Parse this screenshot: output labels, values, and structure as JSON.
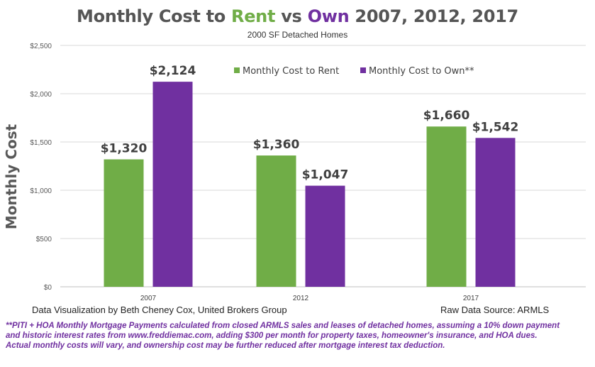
{
  "title": {
    "part1": "Monthly Cost to ",
    "rent": "Rent",
    "part2": " vs ",
    "own": "Own",
    "part3": " 2007, 2012, 2017"
  },
  "subtitle": "2000  SF Detached Homes",
  "credit_left": "Data Visualization by Beth Cheney Cox, United Brokers Group",
  "credit_right": "Raw Data Source:  ARMLS",
  "footnote": [
    "**PITI + HOA Monthly Mortgage Payments calculated from closed ARMLS sales and leases of detached homes, assuming a 10% down payment",
    "and historic interest rates from www.freddiemac.com, adding $300 per month for  property taxes, homeowner's insurance, and HOA dues.",
    "Actual monthly costs will vary, and ownership cost may be further reduced after mortgage interest tax deduction."
  ],
  "colors": {
    "rent": "#70ad47",
    "own": "#7030a0",
    "title_gray": "#555555",
    "grid": "#d9d9d9"
  },
  "chart_data": {
    "type": "bar",
    "categories": [
      "2007",
      "2012",
      "2017"
    ],
    "series": [
      {
        "name": "Monthly Cost to Rent",
        "values": [
          1320,
          1360,
          1660
        ],
        "labels": [
          "$1,320",
          "$1,360",
          "$1,660"
        ],
        "color": "#70ad47"
      },
      {
        "name": "Monthly Cost to Own**",
        "values": [
          2124,
          1047,
          1542
        ],
        "labels": [
          "$2,124",
          "$1,047",
          "$1,542"
        ],
        "color": "#7030a0"
      }
    ],
    "ylabel": "Monthly Cost",
    "ylim": [
      0,
      2500
    ],
    "yticks": [
      0,
      500,
      1000,
      1500,
      2000,
      2500
    ],
    "ytick_labels": [
      "$0",
      "$500",
      "$1,000",
      "$1,500",
      "$2,000",
      "$2,500"
    ],
    "grid": true,
    "legend_position": "top-right"
  }
}
